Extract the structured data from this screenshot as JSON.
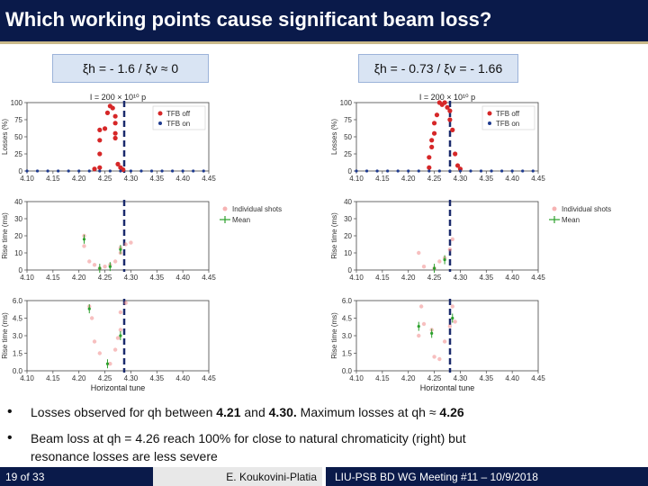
{
  "title": "Which working points cause significant beam loss?",
  "chromaticity_left": "ξh = - 1.6 / ξv ≈ 0",
  "chromaticity_right": "ξh = - 0.73 / ξv = - 1.66",
  "bullets": [
    {
      "pre": "Losses observed for qh between ",
      "b1": "4.21",
      "mid": " and ",
      "b2": "4.30.",
      "post": " Maximum losses at qh ≈ ",
      "b3": "4.26"
    },
    {
      "line1": "Beam loss at qh = 4.26 reach 100% for close to natural chromaticity (right) but",
      "line2": "resonance losses are less severe"
    }
  ],
  "footer": {
    "page": "19 of 33",
    "author": "E. Koukovini-Platia",
    "meeting": "LIU-PSB BD WG Meeting #11 – 10/9/2018"
  },
  "colors": {
    "title_bg": "#0a1a4a",
    "tfb_off": "#d62728",
    "tfb_on": "#1f3b8f",
    "dashed_line": "#1a2a6c",
    "mean": "#2ca02c"
  },
  "panels": {
    "header": "I = 200 × 10¹⁰ p",
    "x_ticks": [
      "4.10",
      "4.15",
      "4.20",
      "4.25",
      "4.30",
      "4.35",
      "4.40",
      "4.45"
    ],
    "xlabel": "Horizontal tune",
    "loss_ylabel": "Losses (%)",
    "loss_yticks": [
      "0",
      "25",
      "50",
      "75",
      "100"
    ],
    "rise_ylabel": "Rise time (ms)",
    "rise_top_yticks": [
      "0",
      "10",
      "20",
      "30",
      "40"
    ],
    "rise_zoom_yticks": [
      "0.0",
      "1.5",
      "3.0",
      "4.5",
      "6.0"
    ],
    "legend_loss": [
      "TFB off",
      "TFB on"
    ],
    "legend_rise": [
      "Individual shots",
      "Mean"
    ]
  },
  "chart_data": [
    {
      "type": "scatter",
      "ylabel": "Losses (%)",
      "xlim": [
        4.1,
        4.45
      ],
      "ylim": [
        0,
        100
      ],
      "series": [
        {
          "name": "TFB off",
          "points": [
            [
              4.24,
              5
            ],
            [
              4.24,
              25
            ],
            [
              4.24,
              45
            ],
            [
              4.24,
              60
            ],
            [
              4.25,
              62
            ],
            [
              4.255,
              85
            ],
            [
              4.26,
              95
            ],
            [
              4.265,
              92
            ],
            [
              4.27,
              80
            ],
            [
              4.27,
              70
            ],
            [
              4.27,
              55
            ],
            [
              4.27,
              48
            ],
            [
              4.275,
              10
            ],
            [
              4.28,
              5
            ],
            [
              4.23,
              3
            ],
            [
              4.285,
              2
            ]
          ]
        },
        {
          "name": "TFB on",
          "points": [
            [
              4.1,
              0
            ],
            [
              4.12,
              0
            ],
            [
              4.14,
              0
            ],
            [
              4.16,
              0
            ],
            [
              4.18,
              0
            ],
            [
              4.2,
              0
            ],
            [
              4.22,
              0
            ],
            [
              4.24,
              0
            ],
            [
              4.26,
              0
            ],
            [
              4.28,
              0
            ],
            [
              4.3,
              0
            ],
            [
              4.32,
              0
            ],
            [
              4.34,
              0
            ],
            [
              4.36,
              0
            ],
            [
              4.38,
              0
            ],
            [
              4.4,
              0
            ],
            [
              4.42,
              0
            ],
            [
              4.44,
              0
            ]
          ]
        }
      ]
    },
    {
      "type": "scatter",
      "ylabel": "Rise time (ms)",
      "xlim": [
        4.1,
        4.45
      ],
      "ylim": [
        0,
        40
      ],
      "series": [
        {
          "name": "Individual shots",
          "points": [
            [
              4.21,
              20
            ],
            [
              4.21,
              14
            ],
            [
              4.22,
              5
            ],
            [
              4.23,
              3
            ],
            [
              4.24,
              1
            ],
            [
              4.25,
              2
            ],
            [
              4.26,
              3
            ],
            [
              4.27,
              5
            ],
            [
              4.28,
              10
            ],
            [
              4.28,
              13
            ],
            [
              4.29,
              15
            ],
            [
              4.3,
              16
            ]
          ]
        },
        {
          "name": "Mean",
          "points": [
            [
              4.21,
              18
            ],
            [
              4.24,
              1
            ],
            [
              4.26,
              2
            ],
            [
              4.28,
              12
            ]
          ]
        }
      ]
    },
    {
      "type": "scatter",
      "ylabel": "Rise time (ms)",
      "xlim": [
        4.1,
        4.45
      ],
      "ylim": [
        0,
        6
      ],
      "series": [
        {
          "name": "Individual shots",
          "points": [
            [
              4.22,
              5.5
            ],
            [
              4.225,
              4.5
            ],
            [
              4.23,
              2.5
            ],
            [
              4.24,
              1.5
            ],
            [
              4.26,
              0.6
            ],
            [
              4.27,
              1.8
            ],
            [
              4.28,
              3.5
            ],
            [
              4.28,
              5.0
            ],
            [
              4.29,
              5.8
            ],
            [
              4.275,
              2.8
            ]
          ]
        },
        {
          "name": "Mean",
          "points": [
            [
              4.22,
              5.3
            ],
            [
              4.28,
              3.0
            ],
            [
              4.255,
              0.6
            ]
          ]
        }
      ]
    },
    {
      "type": "scatter",
      "ylabel": "Losses (%)",
      "xlim": [
        4.1,
        4.45
      ],
      "ylim": [
        0,
        100
      ],
      "series": [
        {
          "name": "TFB off",
          "points": [
            [
              4.24,
              5
            ],
            [
              4.24,
              20
            ],
            [
              4.245,
              35
            ],
            [
              4.245,
              45
            ],
            [
              4.25,
              55
            ],
            [
              4.25,
              70
            ],
            [
              4.255,
              82
            ],
            [
              4.26,
              100
            ],
            [
              4.265,
              97
            ],
            [
              4.27,
              100
            ],
            [
              4.275,
              93
            ],
            [
              4.28,
              88
            ],
            [
              4.28,
              75
            ],
            [
              4.285,
              60
            ],
            [
              4.29,
              25
            ],
            [
              4.295,
              8
            ],
            [
              4.3,
              3
            ]
          ]
        },
        {
          "name": "TFB on",
          "points": [
            [
              4.1,
              0
            ],
            [
              4.12,
              0
            ],
            [
              4.14,
              0
            ],
            [
              4.16,
              0
            ],
            [
              4.18,
              0
            ],
            [
              4.2,
              0
            ],
            [
              4.22,
              0
            ],
            [
              4.24,
              0
            ],
            [
              4.26,
              0
            ],
            [
              4.28,
              0
            ],
            [
              4.3,
              0
            ],
            [
              4.32,
              0
            ],
            [
              4.34,
              0
            ],
            [
              4.36,
              0
            ],
            [
              4.38,
              0
            ],
            [
              4.4,
              0
            ],
            [
              4.42,
              0
            ],
            [
              4.44,
              0
            ]
          ]
        }
      ]
    },
    {
      "type": "scatter",
      "ylabel": "Rise time (ms)",
      "xlim": [
        4.1,
        4.45
      ],
      "ylim": [
        0,
        40
      ],
      "series": [
        {
          "name": "Individual shots",
          "points": [
            [
              4.22,
              10
            ],
            [
              4.23,
              2
            ],
            [
              4.25,
              1
            ],
            [
              4.26,
              5
            ],
            [
              4.27,
              7
            ],
            [
              4.28,
              12
            ],
            [
              4.285,
              18
            ]
          ]
        },
        {
          "name": "Mean",
          "points": [
            [
              4.25,
              1
            ],
            [
              4.27,
              6
            ]
          ]
        }
      ]
    },
    {
      "type": "scatter",
      "ylabel": "Rise time (ms)",
      "xlim": [
        4.1,
        4.45
      ],
      "ylim": [
        0,
        6
      ],
      "series": [
        {
          "name": "Individual shots",
          "points": [
            [
              4.22,
              3.0
            ],
            [
              4.225,
              5.5
            ],
            [
              4.23,
              4.0
            ],
            [
              4.245,
              3.5
            ],
            [
              4.25,
              1.2
            ],
            [
              4.26,
              1.0
            ],
            [
              4.27,
              2.5
            ],
            [
              4.28,
              3.8
            ],
            [
              4.285,
              5.5
            ],
            [
              4.29,
              4.2
            ]
          ]
        },
        {
          "name": "Mean",
          "points": [
            [
              4.22,
              3.8
            ],
            [
              4.245,
              3.2
            ],
            [
              4.285,
              4.5
            ]
          ]
        }
      ]
    }
  ]
}
